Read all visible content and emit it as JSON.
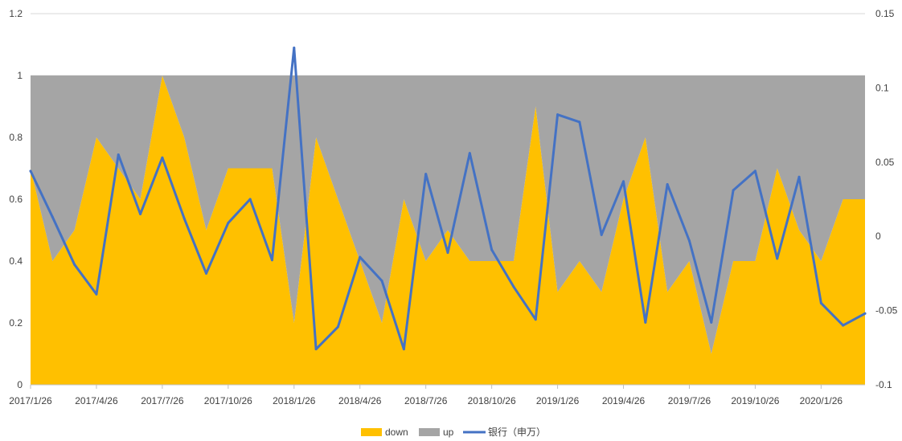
{
  "chart_data": {
    "type": "area",
    "x": [
      "2017/1/26",
      "2017/2/26",
      "2017/3/26",
      "2017/4/26",
      "2017/5/26",
      "2017/6/26",
      "2017/7/26",
      "2017/8/26",
      "2017/9/26",
      "2017/10/26",
      "2017/11/26",
      "2017/12/26",
      "2018/1/26",
      "2018/2/26",
      "2018/3/26",
      "2018/4/26",
      "2018/5/26",
      "2018/6/26",
      "2018/7/26",
      "2018/8/26",
      "2018/9/26",
      "2018/10/26",
      "2018/11/26",
      "2018/12/26",
      "2019/1/26",
      "2019/2/26",
      "2019/3/26",
      "2019/4/26",
      "2019/5/26",
      "2019/6/26",
      "2019/7/26",
      "2019/8/26",
      "2019/9/26",
      "2019/10/26",
      "2019/11/26",
      "2019/12/26",
      "2020/1/26",
      "2020/2/26",
      "2020/3/26"
    ],
    "x_tick_labels": [
      "2017/1/26",
      "2017/4/26",
      "2017/7/26",
      "2017/10/26",
      "2018/1/26",
      "2018/4/26",
      "2018/7/26",
      "2018/10/26",
      "2019/1/26",
      "2019/4/26",
      "2019/7/26",
      "2019/10/26",
      "2020/1/26"
    ],
    "series": [
      {
        "name": "down",
        "axis": "left",
        "kind": "area",
        "color": "#FFC000",
        "values": [
          0.7,
          0.4,
          0.5,
          0.8,
          0.7,
          0.6,
          1.0,
          0.8,
          0.5,
          0.7,
          0.7,
          0.7,
          0.2,
          0.8,
          0.6,
          0.4,
          0.2,
          0.6,
          0.4,
          0.5,
          0.4,
          0.4,
          0.4,
          0.9,
          0.3,
          0.4,
          0.3,
          0.6,
          0.8,
          0.3,
          0.4,
          0.1,
          0.4,
          0.4,
          0.7,
          0.5,
          0.4,
          0.6,
          0.6
        ]
      },
      {
        "name": "up",
        "axis": "left",
        "kind": "area",
        "color": "#A5A5A5",
        "values": [
          0.3,
          0.6,
          0.5,
          0.2,
          0.3,
          0.4,
          0.0,
          0.2,
          0.5,
          0.3,
          0.3,
          0.3,
          0.8,
          0.2,
          0.4,
          0.6,
          0.8,
          0.4,
          0.6,
          0.5,
          0.6,
          0.6,
          0.6,
          0.1,
          0.7,
          0.6,
          0.7,
          0.4,
          0.2,
          0.7,
          0.6,
          0.9,
          0.6,
          0.6,
          0.3,
          0.5,
          0.6,
          0.4,
          0.4
        ]
      },
      {
        "name": "银行（申万）",
        "axis": "right",
        "kind": "line",
        "color": "#4472C4",
        "values": [
          0.044,
          0.013,
          -0.019,
          -0.039,
          0.055,
          0.015,
          0.053,
          0.012,
          -0.025,
          0.009,
          0.025,
          -0.016,
          0.127,
          -0.076,
          -0.061,
          -0.014,
          -0.03,
          -0.076,
          0.042,
          -0.011,
          0.056,
          -0.009,
          -0.034,
          -0.056,
          0.082,
          0.077,
          0.001,
          0.037,
          -0.058,
          0.035,
          -0.003,
          -0.058,
          0.031,
          0.044,
          -0.015,
          0.04,
          -0.045,
          -0.06,
          -0.052
        ]
      }
    ],
    "y_left": {
      "min": 0,
      "max": 1.2,
      "ticks": [
        "0",
        "0.2",
        "0.4",
        "0.6",
        "0.8",
        "1",
        "1.2"
      ]
    },
    "y_right": {
      "min": -0.1,
      "max": 0.15,
      "ticks": [
        "-0.1",
        "-0.05",
        "0",
        "0.05",
        "0.1",
        "0.15"
      ]
    },
    "title": "",
    "xlabel": "",
    "ylabel": "",
    "grid": true,
    "legend_position": "bottom"
  }
}
